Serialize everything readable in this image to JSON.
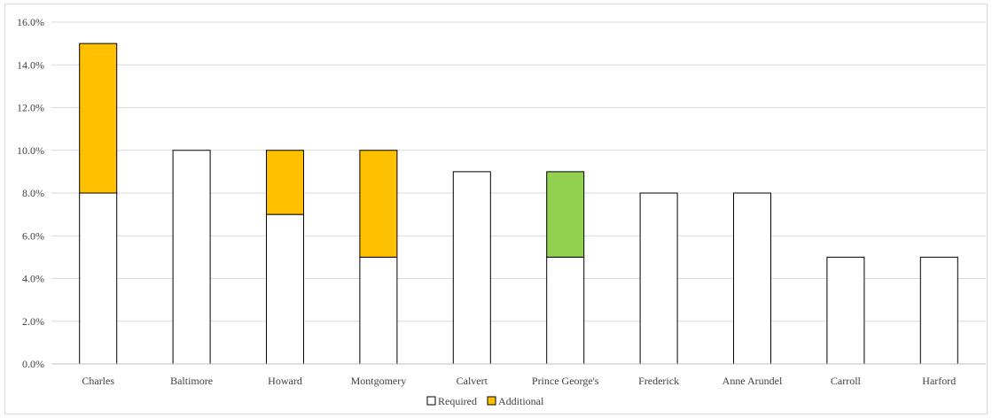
{
  "chart_data": {
    "type": "bar",
    "stacked": true,
    "categories": [
      "Charles",
      "Baltimore",
      "Howard",
      "Montgomery",
      "Calvert",
      "Prince George's",
      "Frederick",
      "Anne Arundel",
      "Carroll",
      "Harford"
    ],
    "series": [
      {
        "name": "Required",
        "color": "#ffffff",
        "values": [
          8.0,
          10.0,
          7.0,
          5.0,
          9.0,
          5.0,
          8.0,
          8.0,
          5.0,
          5.0
        ]
      },
      {
        "name": "Additional",
        "color": "#ffc000",
        "values": [
          7.0,
          0,
          3.0,
          5.0,
          0,
          4.0,
          0,
          0,
          0,
          0
        ],
        "point_colors": [
          "#ffc000",
          "#ffc000",
          "#ffc000",
          "#ffc000",
          "#ffc000",
          "#92d050",
          "#ffc000",
          "#ffc000",
          "#ffc000",
          "#ffc000"
        ]
      }
    ],
    "yticks": [
      "0.0%",
      "2.0%",
      "4.0%",
      "6.0%",
      "8.0%",
      "10.0%",
      "12.0%",
      "14.0%",
      "16.0%"
    ],
    "ylim": [
      0,
      16
    ],
    "y_unit": "%",
    "grid": true,
    "legend_position": "bottom",
    "title": "",
    "xlabel": "",
    "ylabel": ""
  }
}
